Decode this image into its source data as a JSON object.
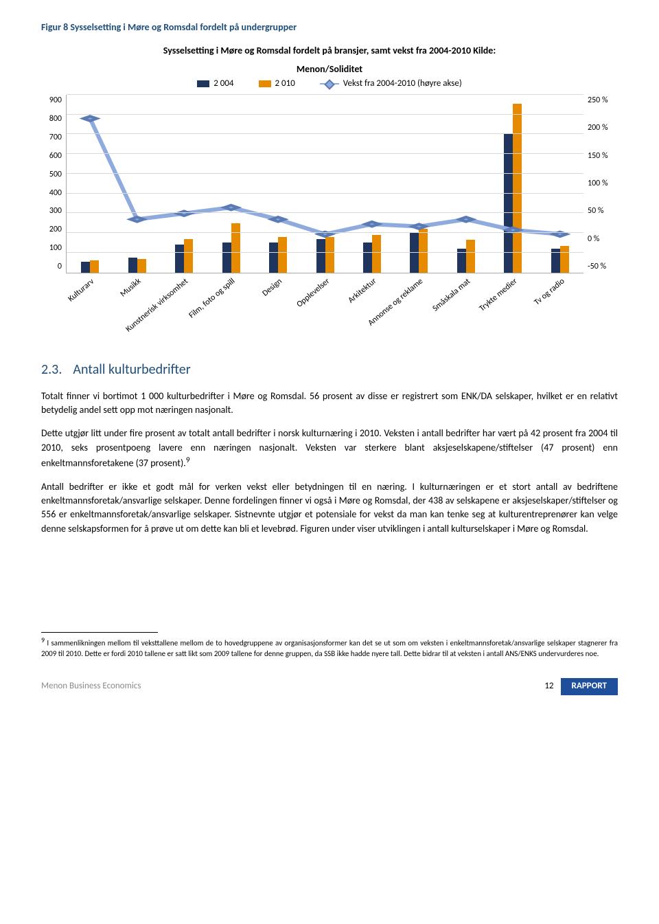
{
  "figure_caption": "Figur 8 Sysselsetting i Møre og Romsdal fordelt på undergrupper",
  "chart": {
    "type": "bar+line",
    "title_line1": "Sysselsetting i Møre og Romsdal fordelt på bransjer, samt vekst fra 2004-2010 Kilde:",
    "title_line2": "Menon/Soliditet",
    "legend": [
      {
        "label": "2 004",
        "type": "bar",
        "color": "#1f355e"
      },
      {
        "label": "2 010",
        "type": "bar",
        "color": "#e68a00"
      },
      {
        "label": "Vekst fra 2004-2010 (høyre akse)",
        "type": "line",
        "color": "#8faadc"
      }
    ],
    "categories": [
      "Kulturarv",
      "Musikk",
      "Kunstnerisk virksomhet",
      "Film, foto og spill",
      "Design",
      "Opplevelser",
      "Arkitektur",
      "Annonse og reklame",
      "Småskala mat",
      "Trykte medier",
      "Tv og radio"
    ],
    "left_axis": {
      "min": 0,
      "max": 900,
      "step": 100
    },
    "right_axis": {
      "min": -50,
      "max": 250,
      "step": 50,
      "suffix": " %"
    },
    "series_2004": [
      55,
      76,
      140,
      150,
      150,
      170,
      150,
      200,
      120,
      700,
      120
    ],
    "series_2010": [
      60,
      70,
      170,
      250,
      180,
      180,
      190,
      220,
      165,
      850,
      135
    ],
    "series_growth_pct": [
      210,
      40,
      50,
      60,
      40,
      15,
      32,
      28,
      40,
      22,
      15
    ],
    "bar_colors": [
      "#1f355e",
      "#e68a00"
    ],
    "line_color": "#8faadc",
    "line_marker_border": "#5b7bb4",
    "background_color": "#ffffff",
    "grid_color": "#d9d9d9",
    "axis_color": "#aaaaaa",
    "font_size_axis": 12,
    "font_size_title": 14
  },
  "section": {
    "number": "2.3.",
    "title": "Antall kulturbedrifter"
  },
  "paragraphs": {
    "p1": "Totalt finner vi bortimot 1 000 kulturbedrifter i Møre og Romsdal. 56 prosent av disse er registrert som ENK/DA selskaper, hvilket er en relativt betydelig andel sett opp mot næringen nasjonalt.",
    "p2": "Dette utgjør litt under fire prosent av totalt antall bedrifter i norsk kulturnæring i 2010. Veksten i antall bedrifter har vært på 42 prosent fra 2004 til 2010, seks prosentpoeng lavere enn næringen nasjonalt. Veksten var sterkere blant aksjeselskapene/stiftelser (47 prosent) enn enkeltmannsforetakene (37 prosent).",
    "p2_sup": "9",
    "p3": "Antall bedrifter er ikke et godt mål for verken vekst eller betydningen til en næring. I kulturnæringen er et stort antall av bedriftene enkeltmannsforetak/ansvarlige selskaper. Denne fordelingen finner vi også i Møre og Romsdal, der 438 av selskapene er aksjeselskaper/stiftelser og 556 er enkeltmannsforetak/ansvarlige selskaper. Sistnevnte utgjør et potensiale for vekst da man kan tenke seg at kulturentreprenører kan velge denne selskapsformen for å prøve ut om dette kan bli et levebrød. Figuren under viser utviklingen i antall kulturselskaper i Møre og Romsdal."
  },
  "footnote": {
    "marker": "9",
    "text": "I sammenlikningen mellom til veksttallene mellom de to hovedgruppene av organisasjonsformer kan det se ut som om veksten i enkeltmannsforetak/ansvarlige selskaper stagnerer fra 2009 til 2010. Dette er fordi 2010 tallene er satt likt som 2009 tallene for denne gruppen, da SSB ikke hadde nyere tall. Dette bidrar til at veksten i antall ANS/ENKS undervurderes noe."
  },
  "footer": {
    "left": "Menon Business Economics",
    "page": "12",
    "badge": "RAPPORT"
  }
}
